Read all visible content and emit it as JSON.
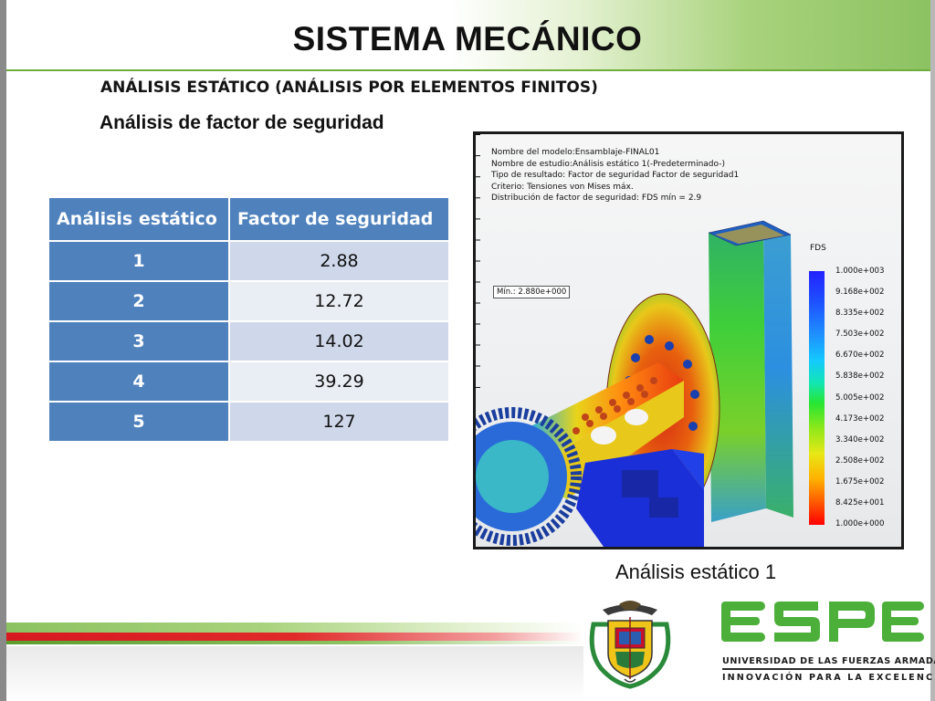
{
  "header": {
    "title": "SISTEMA MECÁNICO",
    "subtitle": "ANÁLISIS ESTÁTICO (ANÁLISIS POR ELEMENTOS FINITOS)",
    "section_title": "Análisis de factor de seguridad"
  },
  "table": {
    "headers": [
      "Análisis estático",
      "Factor de seguridad"
    ],
    "rows": [
      [
        "1",
        "2.88"
      ],
      [
        "2",
        "12.72"
      ],
      [
        "3",
        "14.02"
      ],
      [
        "4",
        "39.29"
      ],
      [
        "5",
        "127"
      ]
    ]
  },
  "simulation": {
    "info_lines": [
      "Nombre del modelo:Ensamblaje-FINAL01",
      "Nombre de estudio:Análisis estático 1(-Predeterminado-)",
      "Tipo de resultado: Factor de seguridad Factor de seguridad1",
      "Criterio: Tensiones von Mises máx.",
      "Distribución de factor de seguridad: FDS mín = 2.9"
    ],
    "min_label": "Mín.:  2.880e+000",
    "legend_title": "FDS",
    "legend_values": [
      "1.000e+003",
      "9.168e+002",
      "8.335e+002",
      "7.503e+002",
      "6.670e+002",
      "5.838e+002",
      "5.005e+002",
      "4.173e+002",
      "3.340e+002",
      "2.508e+002",
      "1.675e+002",
      "8.425e+001",
      "1.000e+000"
    ]
  },
  "caption": "Análisis estático 1",
  "footer": {
    "logo_text": "ESPE",
    "university": "UNIVERSIDAD DE LAS FUERZAS ARMADAS",
    "motto": "INNOVACIÓN PARA LA EXCELENCIA"
  },
  "colors": {
    "accent_green": "#8cc261",
    "table_blue": "#4f81bd",
    "espe_green": "#4caf3a",
    "accent_red": "#d71920"
  }
}
